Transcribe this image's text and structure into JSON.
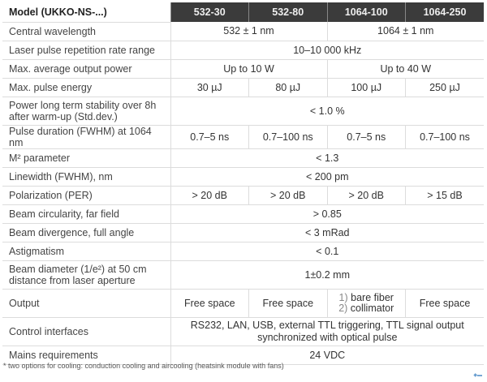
{
  "header": {
    "model_label": "Model (UKKO-NS-...)",
    "models": [
      "532-30",
      "532-80",
      "1064-100",
      "1064-250"
    ]
  },
  "rows": {
    "central_wavelength": {
      "label": "Central wavelength",
      "v532": "532 ± 1 nm",
      "v1064": "1064 ± 1 nm"
    },
    "rep_rate": {
      "label": "Laser pulse repetition rate range",
      "value": "10–10 000 kHz"
    },
    "avg_power": {
      "label": "Max. average output power",
      "v532": "Up to 10 W",
      "v1064": "Up to 40 W"
    },
    "pulse_energy": {
      "label": "Max. pulse energy",
      "values": [
        "30 µJ",
        "80 µJ",
        "100 µJ",
        "250 µJ"
      ]
    },
    "stability": {
      "label1": "Power long term stability over 8h",
      "label2": "after warm-up (Std.dev.)",
      "value": "< 1.0 %"
    },
    "pulse_duration": {
      "label": "Pulse duration (FWHM) at 1064 nm",
      "values": [
        "0.7–5 ns",
        "0.7–100 ns",
        "0.7–5 ns",
        "0.7–100 ns"
      ]
    },
    "m2": {
      "label": "M² parameter",
      "value": "< 1.3"
    },
    "linewidth": {
      "label": "Linewidth (FWHM), nm",
      "value": "< 200 pm"
    },
    "polarization": {
      "label": "Polarization (PER)",
      "values": [
        "> 20 dB",
        "> 20 dB",
        "> 20 dB",
        "> 15 dB"
      ]
    },
    "circularity": {
      "label": "Beam circularity, far field",
      "value": "> 0.85"
    },
    "divergence": {
      "label": "Beam divergence, full angle",
      "value": "< 3 mRad"
    },
    "astigmatism": {
      "label": "Astigmatism",
      "value": "< 0.1"
    },
    "diameter": {
      "label1": "Beam diameter (1/e²) at 50 cm",
      "label2": "distance from laser aperture",
      "value": "1±0.2 mm"
    },
    "output": {
      "label": "Output",
      "v1": "Free space",
      "v2": "Free space",
      "v3a_num": "1)",
      "v3a": "bare fiber",
      "v3b_num": "2)",
      "v3b": "collimator",
      "v4": "Free space"
    },
    "control": {
      "label": "Control interfaces",
      "line1": "RS232, LAN, USB, external TTL triggering, TTL signal output",
      "line2": "synchronized with optical pulse"
    },
    "mains": {
      "label": "Mains requirements",
      "value": "24 VDC"
    }
  },
  "footnote": "* two options for cooling: conduction cooling and aircooling (heatsink module with fans)"
}
